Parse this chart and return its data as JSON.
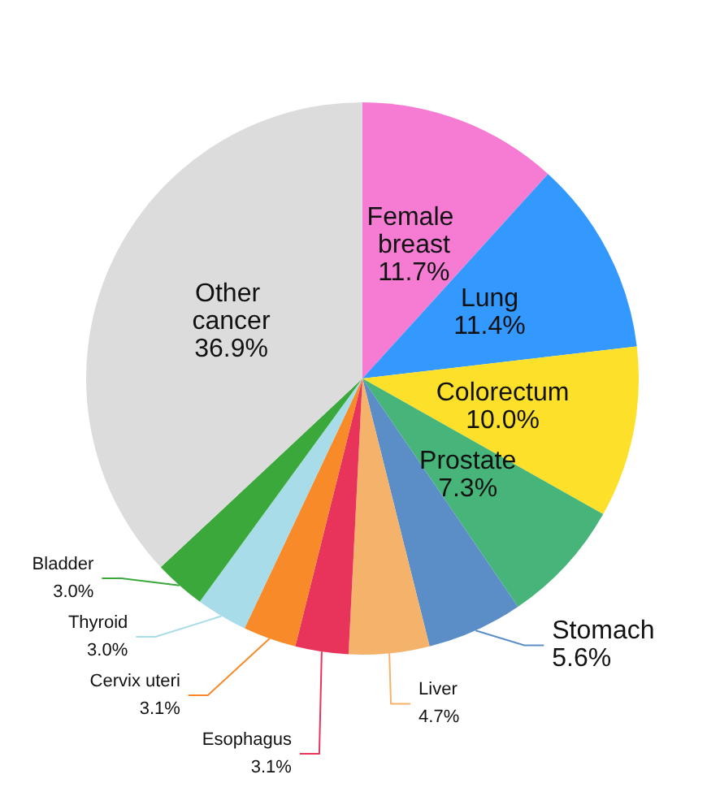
{
  "chart_data": {
    "type": "pie",
    "categories": [
      "Female breast",
      "Lung",
      "Colorectum",
      "Prostate",
      "Stomach",
      "Liver",
      "Esophagus",
      "Cervix uteri",
      "Thyroid",
      "Bladder",
      "Other cancer"
    ],
    "values": [
      11.7,
      11.4,
      10.0,
      7.3,
      5.6,
      4.7,
      3.1,
      3.1,
      3.0,
      3.0,
      36.9
    ],
    "colors": [
      "#f57bd3",
      "#3399ff",
      "#fde02a",
      "#47b57a",
      "#5b8ec7",
      "#f5b26b",
      "#e8335a",
      "#f88a2a",
      "#a8dce8",
      "#3aa83a",
      "#dcdcdc"
    ],
    "value_labels": [
      "11.7%",
      "11.4%",
      "10.0%",
      "7.3%",
      "5.6%",
      "4.7%",
      "3.1%",
      "3.1%",
      "3.0%",
      "3.0%",
      "36.9%"
    ]
  }
}
